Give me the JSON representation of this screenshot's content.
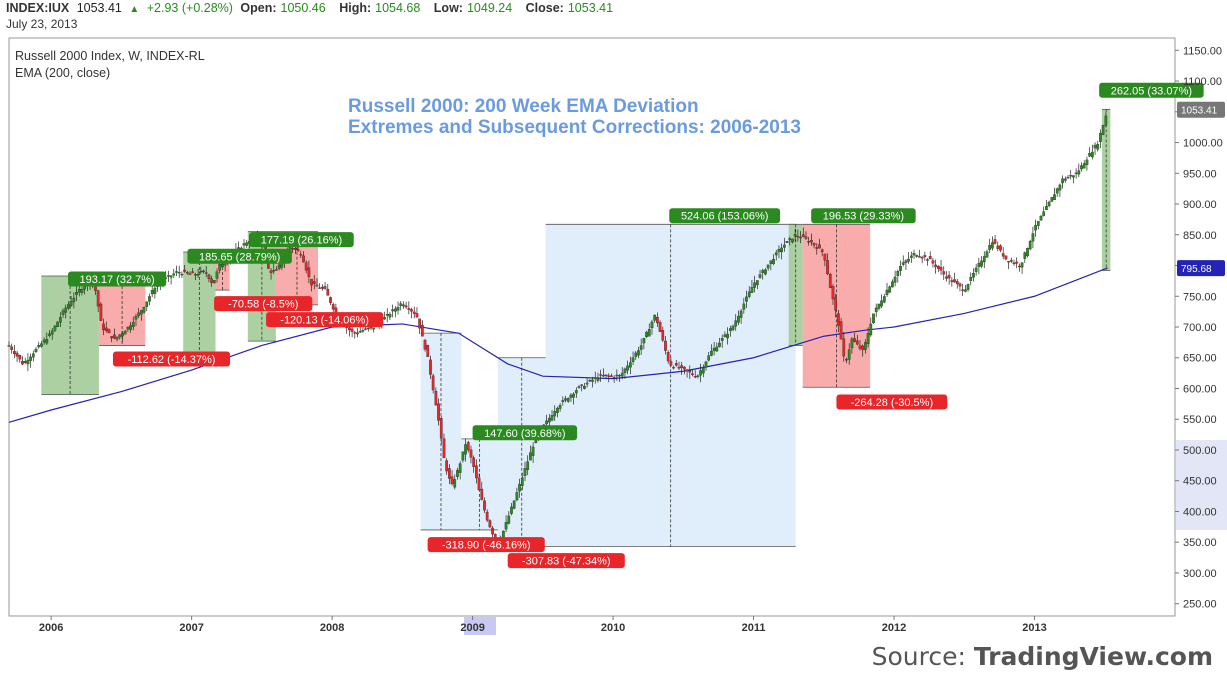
{
  "header": {
    "symbol": "INDEX:IUX",
    "last": "1053.41",
    "change": "+2.93 (+0.28%)",
    "open_label": "Open:",
    "open": "1050.46",
    "high_label": "High:",
    "high": "1054.68",
    "low_label": "Low:",
    "low": "1049.24",
    "close_label": "Close:",
    "close": "1053.41",
    "date": "July 23, 2013"
  },
  "legend": {
    "series_title": "Russell 2000 Index, W, INDEX-RL",
    "ema_title": "EMA (200, close)"
  },
  "source": {
    "prefix": "Source: ",
    "brand": "TradingView.com"
  },
  "colors": {
    "up": "#2a8a1f",
    "down": "#e8262a",
    "ema": "#2323b5",
    "green_box": "#9fc892",
    "red_box": "#f89d9d",
    "blue_box": "#d6e8fb",
    "title": "#6a9be0"
  },
  "chart_data": {
    "type": "line",
    "title": "Russell 2000: 200 Week EMA Deviation",
    "subtitle": "Extremes and Subsequent Corrections: 2006-2013",
    "xlabel": "",
    "ylabel": "",
    "x_ticks": [
      "2006",
      "2007",
      "2008",
      "2009",
      "2010",
      "2011",
      "2012",
      "2013"
    ],
    "x_range": [
      2005.7,
      2014.0
    ],
    "y_ticks": [
      250,
      300,
      350,
      400,
      450,
      500,
      550,
      600,
      650,
      700,
      750,
      800,
      850,
      900,
      950,
      1000,
      1050,
      1100,
      1150
    ],
    "ylim": [
      230,
      1170
    ],
    "last_price": 1053.41,
    "ema_last": 795.68,
    "grid": false,
    "series": [
      {
        "name": "Russell 2000 Index",
        "x": [
          2005.7,
          2005.8,
          2005.9,
          2006.0,
          2006.1,
          2006.2,
          2006.3,
          2006.36,
          2006.45,
          2006.55,
          2006.65,
          2006.75,
          2006.9,
          2007.0,
          2007.1,
          2007.15,
          2007.2,
          2007.3,
          2007.4,
          2007.5,
          2007.55,
          2007.6,
          2007.7,
          2007.78,
          2007.85,
          2007.95,
          2008.05,
          2008.15,
          2008.3,
          2008.4,
          2008.5,
          2008.6,
          2008.68,
          2008.75,
          2008.8,
          2008.85,
          2008.9,
          2008.95,
          2009.0,
          2009.05,
          2009.1,
          2009.15,
          2009.18,
          2009.3,
          2009.45,
          2009.6,
          2009.75,
          2009.9,
          2010.05,
          2010.2,
          2010.3,
          2010.4,
          2010.5,
          2010.6,
          2010.7,
          2010.85,
          2011.0,
          2011.1,
          2011.2,
          2011.3,
          2011.4,
          2011.5,
          2011.55,
          2011.6,
          2011.65,
          2011.7,
          2011.78,
          2011.85,
          2011.95,
          2012.05,
          2012.15,
          2012.25,
          2012.38,
          2012.5,
          2012.6,
          2012.7,
          2012.8,
          2012.9,
          2013.0,
          2013.1,
          2013.2,
          2013.3,
          2013.36,
          2013.45,
          2013.52
        ],
        "values": [
          670,
          640,
          665,
          690,
          730,
          760,
          780,
          700,
          680,
          700,
          730,
          770,
          790,
          785,
          790,
          770,
          800,
          820,
          840,
          850,
          790,
          790,
          830,
          820,
          770,
          760,
          710,
          690,
          700,
          720,
          740,
          720,
          650,
          560,
          480,
          440,
          470,
          510,
          480,
          430,
          390,
          360,
          343,
          420,
          520,
          570,
          600,
          620,
          620,
          670,
          720,
          640,
          630,
          620,
          660,
          700,
          770,
          800,
          830,
          850,
          840,
          820,
          760,
          710,
          640,
          680,
          660,
          720,
          760,
          800,
          820,
          810,
          780,
          760,
          800,
          840,
          810,
          800,
          860,
          900,
          940,
          950,
          970,
          1000,
          1053
        ]
      },
      {
        "name": "EMA (200, close)",
        "x": [
          2005.7,
          2006.0,
          2006.5,
          2007.0,
          2007.5,
          2008.0,
          2008.5,
          2008.9,
          2009.25,
          2009.5,
          2010.0,
          2010.5,
          2011.0,
          2011.5,
          2011.8,
          2012.0,
          2012.5,
          2013.0,
          2013.52
        ],
        "values": [
          545,
          565,
          595,
          630,
          670,
          700,
          705,
          690,
          640,
          620,
          616,
          628,
          650,
          685,
          695,
          700,
          722,
          750,
          796
        ]
      }
    ],
    "annotations": [
      {
        "label": "193.17 (32.7%)",
        "kind": "up",
        "x0": 2005.93,
        "x1": 2006.34,
        "y0": 590,
        "y1": 783,
        "lx": 2006.12,
        "ly": 778
      },
      {
        "label": "-112.62 (-14.37%)",
        "kind": "down",
        "x0": 2006.34,
        "x1": 2006.67,
        "y0": 670,
        "y1": 783,
        "lx": 2006.44,
        "ly": 648
      },
      {
        "label": "185.65 (28.79%)",
        "kind": "up",
        "x0": 2006.94,
        "x1": 2007.17,
        "y0": 645,
        "y1": 822,
        "lx": 2006.97,
        "ly": 815
      },
      {
        "label": "-70.58 (-8.5%)",
        "kind": "down",
        "x0": 2007.17,
        "x1": 2007.27,
        "y0": 760,
        "y1": 822,
        "lx": 2007.16,
        "ly": 738
      },
      {
        "label": "177.19 (26.16%)",
        "kind": "up",
        "x0": 2007.4,
        "x1": 2007.6,
        "y0": 677,
        "y1": 855,
        "lx": 2007.41,
        "ly": 842
      },
      {
        "label": "-120.13 (-14.06%)",
        "kind": "down",
        "x0": 2007.6,
        "x1": 2007.9,
        "y0": 736,
        "y1": 855,
        "lx": 2007.53,
        "ly": 712
      },
      {
        "label": "-318.90 (-46.16%)",
        "kind": "down_blue",
        "x0": 2008.63,
        "x1": 2008.92,
        "y0": 370,
        "y1": 690,
        "lx": 2008.68,
        "ly": 346
      },
      {
        "label": "147.60 (39.68%)",
        "kind": "up_blue",
        "x0": 2008.92,
        "x1": 2009.18,
        "y0": 370,
        "y1": 518,
        "lx": 2009.0,
        "ly": 528
      },
      {
        "label": "-307.83 (-47.34%)",
        "kind": "down_blue",
        "x0": 2009.18,
        "x1": 2009.52,
        "y0": 343,
        "y1": 650,
        "lx": 2009.25,
        "ly": 320
      },
      {
        "label": "524.06 (153.06%)",
        "kind": "up_blue",
        "x0": 2009.52,
        "x1": 2011.3,
        "y0": 343,
        "y1": 867,
        "lx": 2010.4,
        "ly": 881
      },
      {
        "label": "196.53 (29.33%)",
        "kind": "up",
        "x0": 2011.25,
        "x1": 2011.35,
        "y0": 670,
        "y1": 867,
        "lx": 2011.41,
        "ly": 881
      },
      {
        "label": "-264.28 (-30.5%)",
        "kind": "down",
        "x0": 2011.35,
        "x1": 2011.83,
        "y0": 602,
        "y1": 867,
        "lx": 2011.59,
        "ly": 578
      },
      {
        "label": "262.05 (33.07%)",
        "kind": "up",
        "x0": 2013.48,
        "x1": 2013.54,
        "y0": 792,
        "y1": 1054,
        "lx": 2013.46,
        "ly": 1085
      }
    ]
  }
}
